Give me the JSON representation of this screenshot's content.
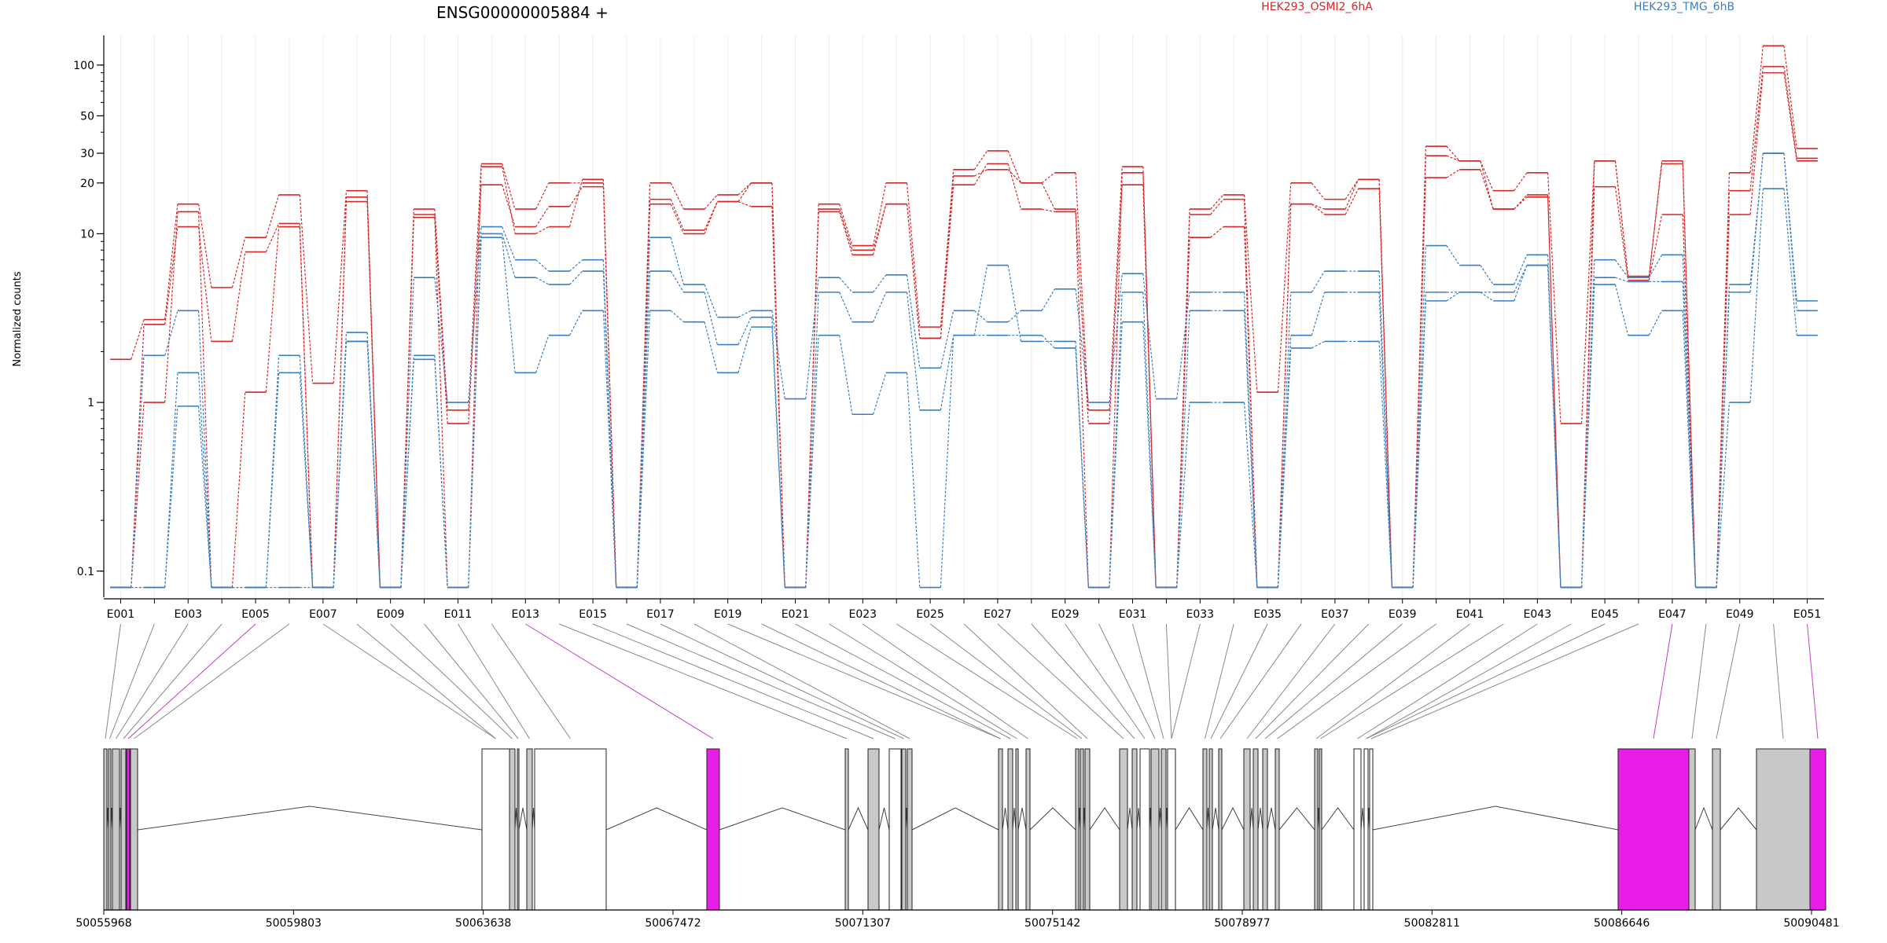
{
  "chart_data": {
    "type": "line",
    "title": "ENSG00000005884 +",
    "ylabel": "Normalized counts",
    "xlabel": "",
    "y_scale": "log",
    "ylim": [
      0.07,
      150
    ],
    "y_ticks": [
      0.1,
      1,
      10,
      20,
      30,
      50,
      100
    ],
    "grid": "vertical",
    "legend": [
      {
        "label": "HEK293_OSMI2_6hA",
        "color": "#d62728",
        "placement": "top-center"
      },
      {
        "label": "HEK293_TMG_6hB",
        "color": "#3a7fc0",
        "placement": "top-right"
      }
    ],
    "exon_labels": [
      "E001",
      "E003",
      "E005",
      "E007",
      "E009",
      "E011",
      "E013",
      "E015",
      "E017",
      "E019",
      "E021",
      "E023",
      "E025",
      "E027",
      "E029",
      "E031",
      "E033",
      "E035",
      "E037",
      "E039",
      "E041",
      "E043",
      "E045",
      "E047",
      "E049",
      "E051"
    ],
    "exons": [
      "E001",
      "E002",
      "E003",
      "E004",
      "E005",
      "E006",
      "E007",
      "E008",
      "E009",
      "E010",
      "E011",
      "E012",
      "E013",
      "E014",
      "E015",
      "E016",
      "E017",
      "E018",
      "E019",
      "E020",
      "E021",
      "E022",
      "E023",
      "E024",
      "E025",
      "E026",
      "E027",
      "E028",
      "E029",
      "E030",
      "E031",
      "E032",
      "E033",
      "E034",
      "E035",
      "E036",
      "E037",
      "E038",
      "E039",
      "E040",
      "E041",
      "E042",
      "E043",
      "E044",
      "E045",
      "E046",
      "E047",
      "E048",
      "E049",
      "E050",
      "E051"
    ],
    "series": [
      {
        "group": "HEK293_OSMI2_6hA",
        "color": "#d62728",
        "values": [
          1.8,
          3.1,
          15,
          4.8,
          9.5,
          17,
          1.3,
          18,
          0.08,
          14,
          0.9,
          26,
          14,
          20,
          20,
          0.08,
          20,
          14,
          17,
          20,
          0.08,
          15,
          8.5,
          20,
          2.8,
          24,
          31,
          20,
          23,
          0.9,
          25,
          0.08,
          14,
          17,
          1.15,
          20,
          16,
          21,
          0.08,
          33,
          27,
          18,
          23,
          0.75,
          27,
          5.5,
          27,
          0.08,
          23,
          130,
          32
        ]
      },
      {
        "group": "HEK293_OSMI2_6hA",
        "color": "#d62728",
        "values": [
          0.08,
          2.9,
          11,
          2.3,
          7.8,
          11.5,
          0.08,
          15.5,
          0.08,
          12.5,
          0.75,
          19.5,
          11,
          14.5,
          19,
          0.08,
          15,
          10,
          15.5,
          14.5,
          0.08,
          13.5,
          7.5,
          15,
          2.4,
          19.5,
          26,
          14,
          13.5,
          0.75,
          19.5,
          0.08,
          9.5,
          11,
          0.08,
          15,
          13,
          18.5,
          0.08,
          21.5,
          24,
          14,
          16.5,
          0.08,
          19,
          5.3,
          13,
          0.08,
          13,
          90,
          27
        ]
      },
      {
        "group": "HEK293_OSMI2_6hA",
        "color": "#d62728",
        "values": [
          0.08,
          1.0,
          13.5,
          0.08,
          1.15,
          11,
          0.08,
          16.5,
          0.08,
          13,
          0.08,
          25,
          10,
          11,
          21,
          0.08,
          16,
          10.5,
          15.5,
          20,
          0.08,
          14,
          8,
          15,
          2.4,
          22,
          24,
          20,
          14,
          0.08,
          23,
          0.08,
          13,
          16,
          0.08,
          15,
          14,
          21,
          0.08,
          29,
          27,
          14,
          17,
          0.08,
          27,
          5.6,
          26,
          0.08,
          18,
          98,
          28
        ]
      },
      {
        "group": "HEK293_TMG_6hB",
        "color": "#3a7fc0",
        "values": [
          0.08,
          1.9,
          3.5,
          0.08,
          0.08,
          1.9,
          0.08,
          2.6,
          0.08,
          5.5,
          1.0,
          11,
          7,
          6,
          7,
          0.08,
          9.5,
          5,
          3.2,
          3.5,
          1.05,
          5.5,
          4.5,
          5.7,
          1.6,
          3.5,
          3.0,
          3.5,
          4.7,
          1.0,
          5.8,
          1.05,
          4.5,
          4.5,
          0.08,
          4.5,
          6,
          6,
          0.08,
          8.5,
          6.5,
          5,
          7.5,
          0.08,
          7,
          5.5,
          7.5,
          0.08,
          5,
          30,
          4
        ]
      },
      {
        "group": "HEK293_TMG_6hB",
        "color": "#3a7fc0",
        "values": [
          0.08,
          0.08,
          1.5,
          0.08,
          0.08,
          1.5,
          0.08,
          2.3,
          0.08,
          1.9,
          0.08,
          10,
          5.5,
          5,
          6,
          0.08,
          6,
          4.5,
          2.2,
          3.2,
          0.08,
          4.5,
          3,
          4.5,
          0.9,
          2.5,
          6.5,
          2.3,
          2.3,
          0.08,
          4.5,
          0.08,
          3.5,
          3.5,
          0.08,
          2.5,
          4.5,
          4.5,
          0.08,
          4.5,
          4.5,
          4.5,
          6.5,
          0.08,
          5.5,
          5.2,
          5.2,
          0.08,
          4.5,
          30,
          3.5
        ]
      },
      {
        "group": "HEK293_TMG_6hB",
        "color": "#3a7fc0",
        "values": [
          0.08,
          0.08,
          0.95,
          0.08,
          0.08,
          0.08,
          0.08,
          2.3,
          0.08,
          1.8,
          0.08,
          9.5,
          1.5,
          2.5,
          3.5,
          0.08,
          3.5,
          3,
          1.5,
          2.8,
          0.08,
          2.5,
          0.85,
          1.5,
          0.08,
          2.5,
          2.5,
          2.5,
          2.1,
          0.08,
          3,
          0.08,
          1.0,
          1.0,
          0.08,
          2.1,
          2.3,
          2.3,
          0.08,
          4,
          4.5,
          4,
          6.5,
          0.08,
          5,
          2.5,
          3.5,
          0.08,
          1.0,
          18.5,
          2.5
        ]
      }
    ],
    "genomic_axis": {
      "tick_labels": [
        "50055968",
        "50059803",
        "50063638",
        "50067472",
        "50071307",
        "50075142",
        "50078977",
        "50082811",
        "50086646",
        "50090481"
      ],
      "start": 50055968,
      "end": 50090481
    }
  }
}
